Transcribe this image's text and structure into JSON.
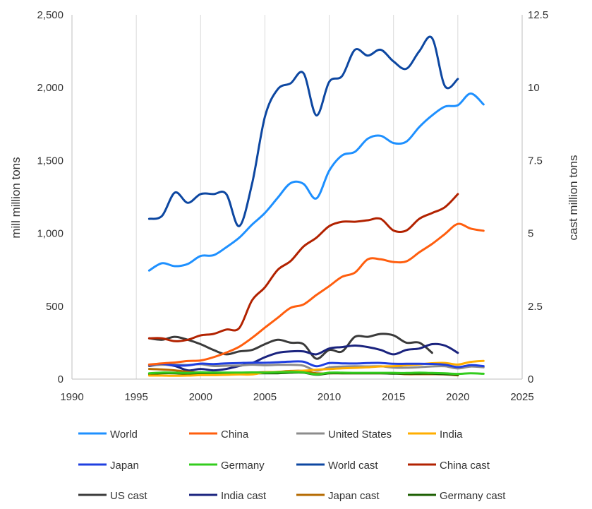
{
  "chart_data": {
    "type": "line",
    "xlabel": "",
    "ylabel_left": "mill million tons",
    "ylabel_right": "cast million tons",
    "xlim": [
      1990,
      2025
    ],
    "ylim_left": [
      0,
      2500
    ],
    "ylim_right": [
      0,
      12.5
    ],
    "x_ticks": [
      "1990",
      "1995",
      "2000",
      "2005",
      "2010",
      "2015",
      "2020",
      "2025"
    ],
    "y_ticks_left": [
      "0",
      "500",
      "1,000",
      "1,500",
      "2,000",
      "2,500"
    ],
    "y_ticks_right": [
      "0",
      "2.5",
      "5",
      "7.5",
      "10",
      "12.5"
    ],
    "grid": "vertical",
    "legend_position": "bottom",
    "series": [
      {
        "name": "World",
        "axis": "left",
        "color": "#1e90ff",
        "x": [
          1996,
          1997,
          1998,
          1999,
          2000,
          2001,
          2002,
          2003,
          2004,
          2005,
          2006,
          2007,
          2008,
          2009,
          2010,
          2011,
          2012,
          2013,
          2014,
          2015,
          2016,
          2017,
          2018,
          2019,
          2020,
          2021,
          2022
        ],
        "y": [
          745,
          795,
          775,
          790,
          845,
          850,
          905,
          970,
          1060,
          1140,
          1245,
          1345,
          1340,
          1240,
          1430,
          1535,
          1560,
          1650,
          1670,
          1620,
          1630,
          1730,
          1810,
          1870,
          1880,
          1960,
          1885
        ]
      },
      {
        "name": "China",
        "axis": "left",
        "color": "#ff5e0e",
        "x": [
          1996,
          1997,
          1998,
          1999,
          2000,
          2001,
          2002,
          2003,
          2004,
          2005,
          2006,
          2007,
          2008,
          2009,
          2010,
          2011,
          2012,
          2013,
          2014,
          2015,
          2016,
          2017,
          2018,
          2019,
          2020,
          2021,
          2022
        ],
        "y": [
          100,
          108,
          114,
          124,
          128,
          150,
          182,
          222,
          283,
          353,
          421,
          489,
          512,
          577,
          638,
          702,
          731,
          822,
          822,
          804,
          808,
          870,
          928,
          996,
          1065,
          1033,
          1018
        ]
      },
      {
        "name": "United States",
        "axis": "left",
        "color": "#8c8c8c",
        "x": [
          1996,
          1997,
          1998,
          1999,
          2000,
          2001,
          2002,
          2003,
          2004,
          2005,
          2006,
          2007,
          2008,
          2009,
          2010,
          2011,
          2012,
          2013,
          2014,
          2015,
          2016,
          2017,
          2018,
          2019,
          2020,
          2021,
          2022
        ],
        "y": [
          95,
          98,
          99,
          97,
          102,
          90,
          92,
          93,
          99,
          95,
          98,
          98,
          92,
          58,
          80,
          86,
          88,
          87,
          88,
          79,
          78,
          82,
          87,
          88,
          73,
          86,
          81
        ]
      },
      {
        "name": "India",
        "axis": "left",
        "color": "#ffae00",
        "x": [
          1996,
          1997,
          1998,
          1999,
          2000,
          2001,
          2002,
          2003,
          2004,
          2005,
          2006,
          2007,
          2008,
          2009,
          2010,
          2011,
          2012,
          2013,
          2014,
          2015,
          2016,
          2017,
          2018,
          2019,
          2020,
          2021,
          2022
        ],
        "y": [
          24,
          24,
          23,
          24,
          27,
          27,
          29,
          32,
          32,
          46,
          49,
          53,
          58,
          64,
          69,
          74,
          77,
          81,
          87,
          89,
          95,
          101,
          109,
          111,
          100,
          118,
          125
        ]
      },
      {
        "name": "Japan",
        "axis": "left",
        "color": "#1f3fe0",
        "x": [
          1996,
          1997,
          1998,
          1999,
          2000,
          2001,
          2002,
          2003,
          2004,
          2005,
          2006,
          2007,
          2008,
          2009,
          2010,
          2011,
          2012,
          2013,
          2014,
          2015,
          2016,
          2017,
          2018,
          2019,
          2020,
          2021,
          2022
        ],
        "y": [
          99,
          104,
          94,
          94,
          106,
          103,
          108,
          110,
          113,
          112,
          116,
          120,
          119,
          88,
          110,
          108,
          107,
          110,
          111,
          105,
          105,
          105,
          104,
          99,
          83,
          96,
          89
        ]
      },
      {
        "name": "Germany",
        "axis": "left",
        "color": "#33cc1e",
        "x": [
          1996,
          1997,
          1998,
          1999,
          2000,
          2001,
          2002,
          2003,
          2004,
          2005,
          2006,
          2007,
          2008,
          2009,
          2010,
          2011,
          2012,
          2013,
          2014,
          2015,
          2016,
          2017,
          2018,
          2019,
          2020,
          2021,
          2022
        ],
        "y": [
          40,
          45,
          44,
          42,
          46,
          45,
          45,
          45,
          46,
          45,
          47,
          49,
          46,
          33,
          44,
          44,
          43,
          43,
          43,
          43,
          42,
          44,
          42,
          40,
          36,
          40,
          37
        ]
      },
      {
        "name": "World cast",
        "axis": "right",
        "color": "#0d47a1",
        "x": [
          1996,
          1997,
          1998,
          1999,
          2000,
          2001,
          2002,
          2003,
          2004,
          2005,
          2006,
          2007,
          2008,
          2009,
          2010,
          2011,
          2012,
          2013,
          2014,
          2015,
          2016,
          2017,
          2018,
          2019,
          2020
        ],
        "y": [
          5.5,
          5.6,
          6.4,
          6.05,
          6.35,
          6.35,
          6.35,
          5.25,
          6.7,
          9.0,
          9.95,
          10.15,
          10.5,
          9.05,
          10.2,
          10.4,
          11.3,
          11.1,
          11.3,
          10.9,
          10.65,
          11.25,
          11.7,
          10.05,
          10.3
        ]
      },
      {
        "name": "China cast",
        "axis": "right",
        "color": "#b22200",
        "x": [
          1996,
          1997,
          1998,
          1999,
          2000,
          2001,
          2002,
          2003,
          2004,
          2005,
          2006,
          2007,
          2008,
          2009,
          2010,
          2011,
          2012,
          2013,
          2014,
          2015,
          2016,
          2017,
          2018,
          2019,
          2020
        ],
        "y": [
          1.4,
          1.4,
          1.3,
          1.35,
          1.5,
          1.55,
          1.7,
          1.75,
          2.7,
          3.15,
          3.75,
          4.05,
          4.55,
          4.85,
          5.25,
          5.4,
          5.4,
          5.45,
          5.5,
          5.1,
          5.1,
          5.5,
          5.7,
          5.9,
          6.35
        ]
      },
      {
        "name": "US cast",
        "axis": "right",
        "color": "#3a3a3a",
        "x": [
          1996,
          1997,
          1998,
          1999,
          2000,
          2001,
          2002,
          2003,
          2004,
          2005,
          2006,
          2007,
          2008,
          2009,
          2010,
          2011,
          2012,
          2013,
          2014,
          2015,
          2016,
          2017,
          2018
        ],
        "y": [
          1.4,
          1.35,
          1.45,
          1.35,
          1.2,
          1.0,
          0.85,
          0.95,
          1.0,
          1.2,
          1.35,
          1.25,
          1.2,
          0.7,
          1.0,
          0.95,
          1.45,
          1.45,
          1.55,
          1.5,
          1.25,
          1.25,
          0.9
        ]
      },
      {
        "name": "India cast",
        "axis": "right",
        "color": "#1a237e",
        "x": [
          1996,
          1997,
          1998,
          1999,
          2000,
          2001,
          2002,
          2003,
          2004,
          2005,
          2006,
          2007,
          2008,
          2009,
          2010,
          2011,
          2012,
          2013,
          2014,
          2015,
          2016,
          2017,
          2018,
          2019,
          2020
        ],
        "y": [
          0.45,
          0.5,
          0.45,
          0.3,
          0.35,
          0.3,
          0.35,
          0.45,
          0.55,
          0.75,
          0.9,
          0.95,
          0.95,
          0.85,
          1.05,
          1.1,
          1.15,
          1.1,
          1.0,
          0.85,
          1.0,
          1.05,
          1.2,
          1.15,
          0.9
        ]
      },
      {
        "name": "Japan cast",
        "axis": "right",
        "color": "#b56a00",
        "x": [
          1996,
          1997,
          1998,
          1999,
          2000,
          2001,
          2002,
          2003,
          2004,
          2005,
          2006,
          2007,
          2008,
          2009,
          2010,
          2011,
          2012,
          2013,
          2014,
          2015,
          2016,
          2017,
          2018,
          2019,
          2020
        ],
        "y": [
          0.35,
          0.33,
          0.3,
          0.25,
          0.22,
          0.2,
          0.2,
          0.2,
          0.22,
          0.24,
          0.25,
          0.28,
          0.28,
          0.2,
          0.2,
          0.2,
          0.2,
          0.2,
          0.2,
          0.2,
          0.17,
          0.17,
          0.17,
          0.16,
          0.13
        ]
      },
      {
        "name": "Germany cast",
        "axis": "right",
        "color": "#1b5e00",
        "x": [
          1996,
          1997,
          1998,
          1999,
          2000,
          2001,
          2002,
          2003,
          2004,
          2005,
          2006,
          2007,
          2008,
          2009,
          2010,
          2011,
          2012,
          2013,
          2014,
          2015,
          2016,
          2017,
          2018,
          2019,
          2020
        ],
        "y": [
          0.18,
          0.2,
          0.2,
          0.18,
          0.2,
          0.2,
          0.2,
          0.19,
          0.2,
          0.2,
          0.2,
          0.22,
          0.22,
          0.15,
          0.2,
          0.2,
          0.2,
          0.2,
          0.2,
          0.19,
          0.19,
          0.19,
          0.19,
          0.17,
          0.15
        ]
      }
    ]
  }
}
